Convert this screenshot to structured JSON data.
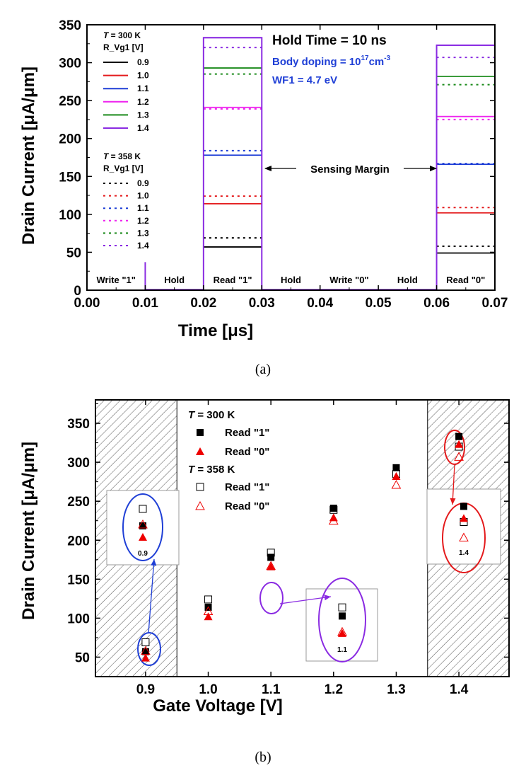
{
  "chart_data": [
    {
      "type": "line",
      "panel_caption": "(a)",
      "xlabel": "Time [μs]",
      "ylabel": "Drain Current [μA/μm]",
      "xlim": [
        0.0,
        0.07
      ],
      "ylim": [
        0,
        350
      ],
      "xticks": [
        "0.00",
        "0.01",
        "0.02",
        "0.03",
        "0.04",
        "0.05",
        "0.06",
        "0.07"
      ],
      "yticks": [
        "0",
        "50",
        "100",
        "150",
        "200",
        "250",
        "300",
        "350"
      ],
      "annotations": {
        "hold_time": "Hold Time = 10 ns",
        "body_doping_prefix": "Body doping = 10",
        "body_doping_exp": "17",
        "body_doping_unit": "cm",
        "body_doping_unit_exp": "-3",
        "wf": "WF1 = 4.7 eV",
        "sensing_margin": "Sensing Margin"
      },
      "phase_labels": [
        {
          "text": "Write \"1\"",
          "x": 0.005
        },
        {
          "text": "Hold",
          "x": 0.015
        },
        {
          "text": "Read \"1\"",
          "x": 0.025
        },
        {
          "text": "Hold",
          "x": 0.035
        },
        {
          "text": "Write \"0\"",
          "x": 0.045
        },
        {
          "text": "Hold",
          "x": 0.055
        },
        {
          "text": "Read \"0\"",
          "x": 0.065
        }
      ],
      "legend": {
        "group1_T": "T",
        "group1_Tval": " = 300 K",
        "group1_sub": "R_Vg1 [V]",
        "group2_T": "T",
        "group2_Tval": " = 358 K",
        "group2_sub": "R_Vg1 [V]"
      },
      "colors": {
        "0.9": "#000000",
        "1.0": "#e41a1c",
        "1.1": "#1f3fd6",
        "1.2": "#ee22ee",
        "1.3": "#1a8a1a",
        "1.4": "#8a2be2"
      },
      "series": [
        {
          "name": "0.9",
          "temperature": "300 K",
          "style": "solid",
          "read1": 57,
          "read0": 49
        },
        {
          "name": "1.0",
          "temperature": "300 K",
          "style": "solid",
          "read1": 114,
          "read0": 102
        },
        {
          "name": "1.1",
          "temperature": "300 K",
          "style": "solid",
          "read1": 178,
          "read0": 166
        },
        {
          "name": "1.2",
          "temperature": "300 K",
          "style": "solid",
          "read1": 241,
          "read0": 229
        },
        {
          "name": "1.3",
          "temperature": "300 K",
          "style": "solid",
          "read1": 293,
          "read0": 282
        },
        {
          "name": "1.4",
          "temperature": "300 K",
          "style": "solid",
          "read1": 333,
          "read0": 323
        },
        {
          "name": "0.9",
          "temperature": "358 K",
          "style": "dotted",
          "read1": 69,
          "read0": 58
        },
        {
          "name": "1.0",
          "temperature": "358 K",
          "style": "dotted",
          "read1": 124,
          "read0": 109
        },
        {
          "name": "1.1",
          "temperature": "358 K",
          "style": "dotted",
          "read1": 184,
          "read0": 167
        },
        {
          "name": "1.2",
          "temperature": "358 K",
          "style": "dotted",
          "read1": 239,
          "read0": 225
        },
        {
          "name": "1.3",
          "temperature": "358 K",
          "style": "dotted",
          "read1": 285,
          "read0": 271
        },
        {
          "name": "1.4",
          "temperature": "358 K",
          "style": "dotted",
          "read1": 320,
          "read0": 307
        }
      ],
      "write1_spike": 37
    },
    {
      "type": "scatter",
      "panel_caption": "(b)",
      "xlabel": "Gate Voltage [V]",
      "ylabel": "Drain Current [μA/μm]",
      "xlim": [
        0.82,
        1.48
      ],
      "ylim": [
        25,
        380
      ],
      "xticks": [
        "0.9",
        "1.0",
        "1.1",
        "1.2",
        "1.3",
        "1.4"
      ],
      "yticks": [
        "50",
        "100",
        "150",
        "200",
        "250",
        "300",
        "350"
      ],
      "legend": {
        "t300_T": "T",
        "t300_val": " = 300 K",
        "t358_T": "T",
        "t358_val": " = 358 K",
        "read1": "Read \"1\"",
        "read0": "Read \"0\"",
        "read1_b": "Read \"1\"",
        "read0_b": "Read \"0\""
      },
      "hatched_regions": [
        [
          0.82,
          0.95
        ],
        [
          1.35,
          1.48
        ]
      ],
      "series": [
        {
          "name": "Read \"1\" (T = 300 K)",
          "marker": "filled-square",
          "color": "#000000",
          "x": [
            0.9,
            1.0,
            1.1,
            1.2,
            1.3,
            1.4
          ],
          "values": [
            57,
            114,
            178,
            241,
            293,
            333
          ]
        },
        {
          "name": "Read \"0\" (T = 300 K)",
          "marker": "filled-triangle",
          "color": "#ee0000",
          "x": [
            0.9,
            1.0,
            1.1,
            1.2,
            1.3,
            1.4
          ],
          "values": [
            49,
            102,
            166,
            229,
            282,
            323
          ]
        },
        {
          "name": "Read \"1\" (T = 358 K)",
          "marker": "open-square",
          "color": "#000000",
          "x": [
            0.9,
            1.0,
            1.1,
            1.2,
            1.3,
            1.4
          ],
          "values": [
            69,
            124,
            184,
            239,
            285,
            320
          ]
        },
        {
          "name": "Read \"0\" (T = 358 K)",
          "marker": "open-triangle",
          "color": "#ee0000",
          "x": [
            0.9,
            1.0,
            1.1,
            1.2,
            1.3,
            1.4
          ],
          "values": [
            58,
            109,
            167,
            225,
            271,
            307
          ]
        }
      ],
      "insets": [
        {
          "label": "0.9",
          "read1_300": 57,
          "read0_300": 49,
          "read1_358": 69,
          "read0_358": 58
        },
        {
          "label": "1.1",
          "read1_300": 178,
          "read0_300": 166,
          "read1_358": 184,
          "read0_358": 167
        },
        {
          "label": "1.4",
          "read1_300": 333,
          "read0_300": 323,
          "read1_358": 320,
          "read0_358": 307
        }
      ]
    }
  ]
}
